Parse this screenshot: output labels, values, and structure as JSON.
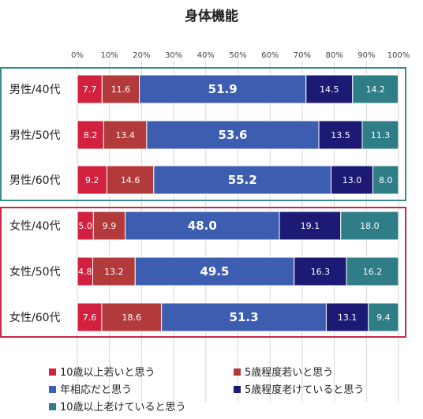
{
  "chart_data": {
    "type": "bar",
    "stacked": true,
    "orientation": "horizontal",
    "title": "身体機能",
    "x_ticks": [
      "0%",
      "10%",
      "20%",
      "30%",
      "40%",
      "50%",
      "60%",
      "70%",
      "80%",
      "90%",
      "100%"
    ],
    "xlim": [
      0,
      100
    ],
    "grid": true,
    "legend_position": "bottom",
    "categories": [
      "男性/40代",
      "男性/50代",
      "男性/60代",
      "女性/40代",
      "女性/50代",
      "女性/60代"
    ],
    "groups": [
      {
        "name": "男性",
        "color": "#3a8a93"
      },
      {
        "name": "女性",
        "color": "#c8284b"
      }
    ],
    "series": [
      {
        "name": "10歳以上若いと思う",
        "color": "#d2213f",
        "values": [
          7.7,
          8.2,
          9.2,
          5.0,
          4.8,
          7.6
        ]
      },
      {
        "name": "5歳程度若いと思う",
        "color": "#b33a3a",
        "values": [
          11.6,
          13.4,
          14.6,
          9.9,
          13.2,
          18.6
        ]
      },
      {
        "name": "年相応だと思う",
        "color": "#3c5db0",
        "values": [
          51.9,
          53.6,
          55.2,
          48.0,
          49.5,
          51.3
        ]
      },
      {
        "name": "5歳程度老けていると思う",
        "color": "#1c1a74",
        "values": [
          14.5,
          13.5,
          13.0,
          19.1,
          16.3,
          13.1
        ]
      },
      {
        "name": "10歳以上老けていると思う",
        "color": "#2f7d86",
        "values": [
          14.2,
          11.3,
          8.0,
          18.0,
          16.2,
          9.4
        ]
      }
    ]
  }
}
